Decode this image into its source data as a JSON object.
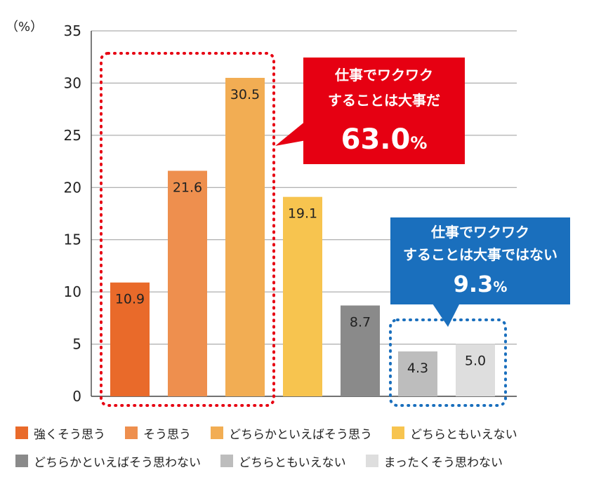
{
  "chart_data": {
    "type": "bar",
    "unit_label": "（%）",
    "ylim": [
      0,
      35
    ],
    "yticks": [
      0,
      5,
      10,
      15,
      20,
      25,
      30,
      35
    ],
    "grid": true,
    "legend_position": "bottom",
    "categories": [
      "強くそう思う",
      "そう思う",
      "どちらかといえばそう思う",
      "どちらともいえない",
      "どちらかといえばそう思わない",
      "どちらともいえない",
      "まったくそう思わない"
    ],
    "values": [
      10.9,
      21.6,
      30.5,
      19.1,
      8.7,
      4.3,
      5.0
    ],
    "value_labels": [
      "10.9",
      "21.6",
      "30.5",
      "19.1",
      "8.7",
      "4.3",
      "5.0"
    ],
    "colors": [
      "#e96a2a",
      "#ee8f4e",
      "#f2ad53",
      "#f7c44f",
      "#8a8a8a",
      "#bdbdbd",
      "#dedede"
    ],
    "annotations": [
      {
        "lines": [
          "仕事でワクワク",
          "することは大事だ"
        ],
        "value": "63.0",
        "suffix": "%",
        "color": "#e60012",
        "bracket": "dotted"
      },
      {
        "lines": [
          "仕事でワクワク",
          "することは大事ではない"
        ],
        "value": "9.3",
        "suffix": "%",
        "color": "#1a6fbd",
        "bracket": "dotted"
      }
    ]
  },
  "legend": {
    "rows": [
      [
        {
          "label": "強くそう思う",
          "color": "#e96a2a"
        },
        {
          "label": "そう思う",
          "color": "#ee8f4e"
        },
        {
          "label": "どちらかといえばそう思う",
          "color": "#f2ad53"
        },
        {
          "label": "どちらともいえない",
          "color": "#f7c44f"
        }
      ],
      [
        {
          "label": "どちらかといえばそう思わない",
          "color": "#8a8a8a"
        },
        {
          "label": "どちらともいえない",
          "color": "#bdbdbd"
        },
        {
          "label": "まったくそう思わない",
          "color": "#dedede"
        }
      ]
    ]
  }
}
